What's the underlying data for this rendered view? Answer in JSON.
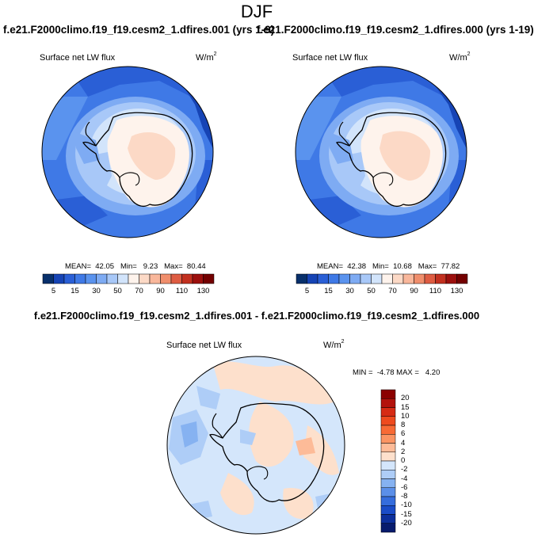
{
  "title": "DJF",
  "panels": [
    {
      "case_title": "f.e21.F2000climo.f19_f19.cesm2_1.dfires.001 (yrs 1-9)",
      "variable": "Surface net LW flux",
      "units": "W/m",
      "units_exp": "2",
      "stats": "MEAN=  42.05   Min=   9.23   Max=  80.44"
    },
    {
      "case_title": "f.e21.F2000climo.f19_f19.cesm2_1.dfires.000 (yrs 1-19)",
      "variable": "Surface net LW flux",
      "units": "W/m",
      "units_exp": "2",
      "stats": "MEAN=  42.38   Min=  10.68   Max=  77.82"
    }
  ],
  "abs_colorbar": {
    "labels": [
      "5",
      "15",
      "30",
      "50",
      "70",
      "90",
      "110",
      "130"
    ],
    "colors": [
      "#08306b",
      "#1644b5",
      "#2a5fd6",
      "#3f79e6",
      "#5a93ee",
      "#7eabf3",
      "#a8c8f8",
      "#d2e4fb",
      "#fef3ec",
      "#fcd9c6",
      "#f9b79b",
      "#f08e6c",
      "#de5c42",
      "#c2301f",
      "#9c0f0d",
      "#730000"
    ]
  },
  "diff": {
    "title": "f.e21.F2000climo.f19_f19.cesm2_1.dfires.001 - f.e21.F2000climo.f19_f19.cesm2_1.dfires.000",
    "variable": "Surface net LW flux",
    "units": "W/m",
    "units_exp": "2",
    "stats": "MIN =  -4.78 MAX =   4.20",
    "colorbar_labels": [
      "20",
      "15",
      "10",
      "8",
      "6",
      "4",
      "2",
      "0",
      "-2",
      "-4",
      "-6",
      "-8",
      "-10",
      "-15",
      "-20"
    ],
    "colorbar_colors": [
      "#8b0000",
      "#b3120c",
      "#d62b14",
      "#ee4a1e",
      "#f86a35",
      "#fb9463",
      "#fdbb98",
      "#fde0cc",
      "#d4e6fb",
      "#aecdf7",
      "#86b2f1",
      "#5b8fe9",
      "#356ddd",
      "#1a4cc8",
      "#0c2f9c",
      "#071b6d"
    ]
  }
}
